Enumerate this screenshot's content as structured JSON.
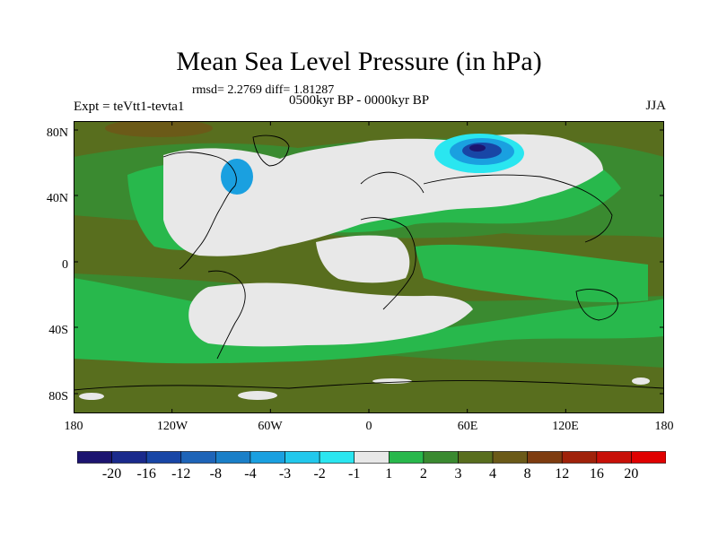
{
  "title": "Mean Sea Level Pressure (in hPa)",
  "stats": "rmsd= 2.2769 diff= 1.81287",
  "experiment": "Expt = teVtt1-tevta1",
  "period": "0500kyr BP - 0000kyr BP",
  "season": "JJA",
  "lat_labels": [
    "80N",
    "40N",
    "0",
    "40S",
    "80S"
  ],
  "lon_labels": [
    "180",
    "120W",
    "60W",
    "0",
    "60E",
    "120E",
    "180"
  ],
  "colorbar": {
    "labels": [
      "-20",
      "-16",
      "-12",
      "-8",
      "-4",
      "-3",
      "-2",
      "-1",
      "1",
      "2",
      "3",
      "4",
      "8",
      "12",
      "16",
      "20"
    ],
    "colors": [
      "#1c1470",
      "#1a2a8c",
      "#1846a6",
      "#1e64b8",
      "#1a7fc8",
      "#1aa0e0",
      "#22c8ec",
      "#2ae6f0",
      "#e8e8e8",
      "#28b84c",
      "#3a8a30",
      "#586e1e",
      "#6b5a18",
      "#7e3c10",
      "#a0220a",
      "#c81008",
      "#e00000"
    ]
  },
  "palette": {
    "neutral": "#e8e8e8",
    "green": "#28b84c",
    "olive": "#3a8a30",
    "brown": "#586e1e",
    "darkbrown": "#6b5a18",
    "rust": "#7e3c10",
    "cyan": "#2ae6f0",
    "lightblue": "#1aa0e0",
    "blue": "#1846a6",
    "navy": "#1c1470"
  }
}
